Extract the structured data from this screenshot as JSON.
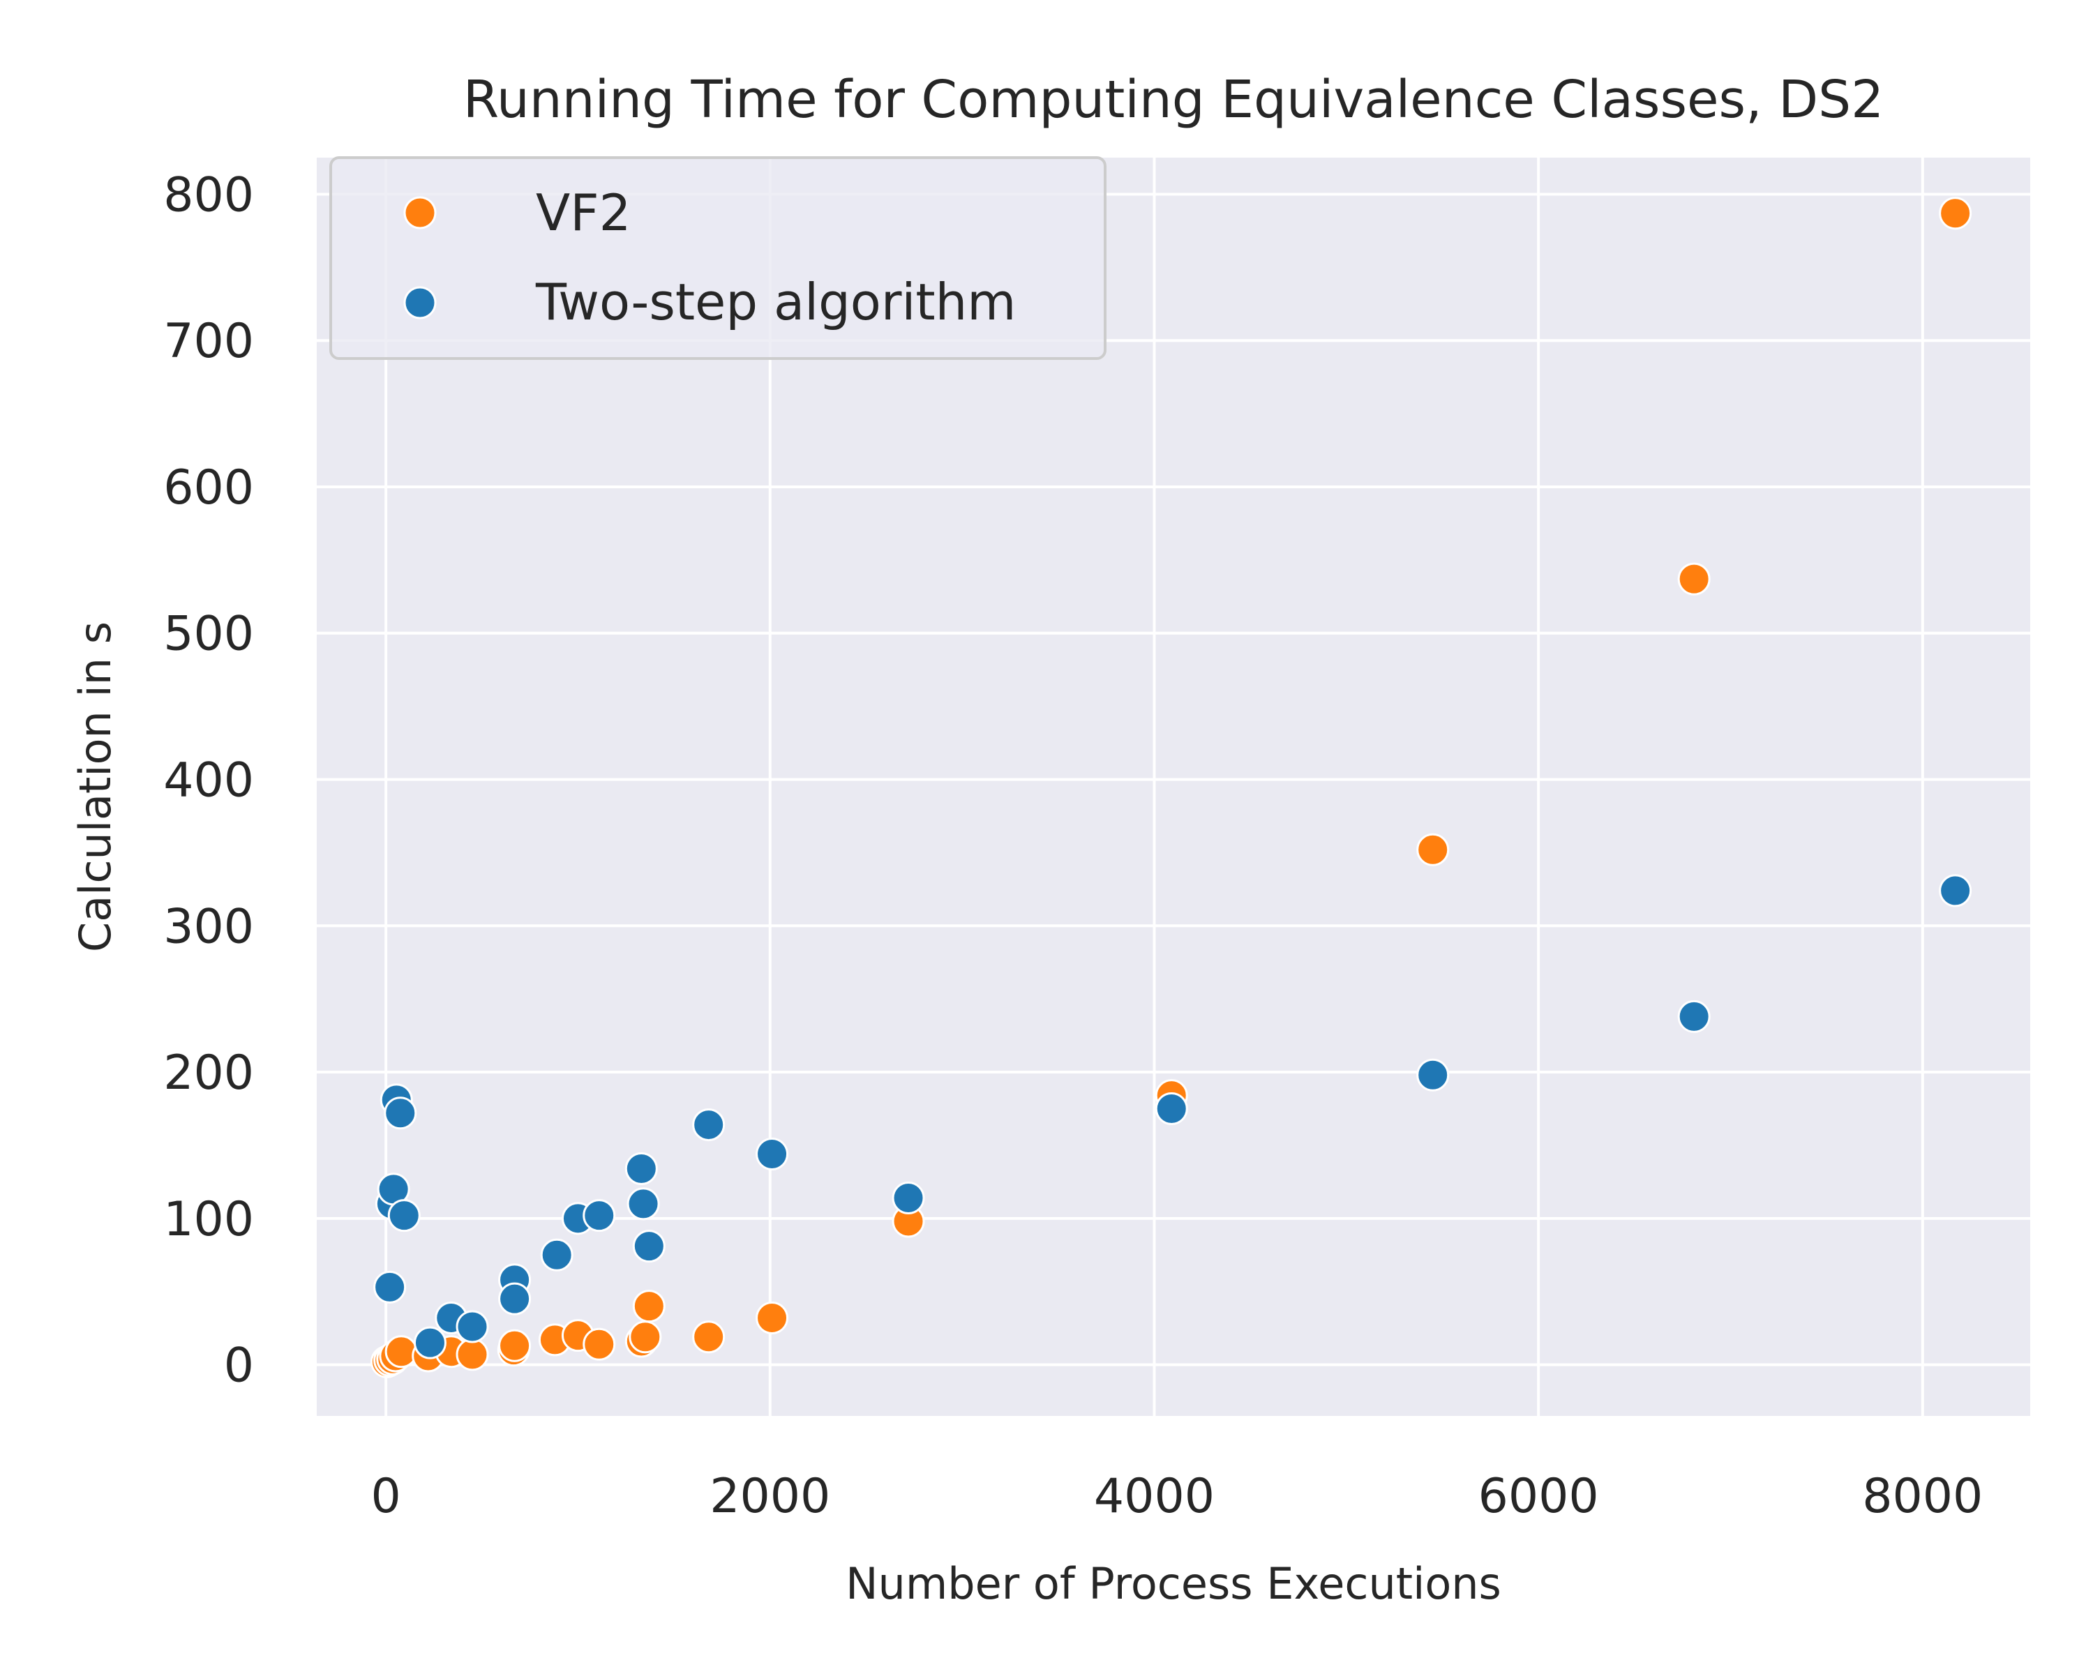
{
  "chart_data": {
    "type": "scatter",
    "title": "Running Time for Computing Equivalence Classes, DS2",
    "xlabel": "Number of Process Executions",
    "ylabel": "Calculation in s",
    "xlim": [
      -360,
      8560
    ],
    "ylim": [
      -35,
      825
    ],
    "xticks": [
      0,
      2000,
      4000,
      6000,
      8000
    ],
    "yticks": [
      0,
      100,
      200,
      300,
      400,
      500,
      600,
      700,
      800
    ],
    "grid": true,
    "legend": "top-left",
    "colors": {
      "background": "#eaeaf2",
      "grid": "#ffffff",
      "VF2": "#ff7f0e",
      "Two-step algorithm": "#1f77b4"
    },
    "series": [
      {
        "name": "VF2",
        "color": "#ff7f0e",
        "points": [
          [
            5,
            2
          ],
          [
            20,
            3
          ],
          [
            35,
            4
          ],
          [
            50,
            6
          ],
          [
            80,
            9
          ],
          [
            220,
            6
          ],
          [
            340,
            9
          ],
          [
            450,
            7
          ],
          [
            665,
            10
          ],
          [
            670,
            13
          ],
          [
            880,
            17
          ],
          [
            1000,
            20
          ],
          [
            1110,
            14
          ],
          [
            1330,
            16
          ],
          [
            1350,
            19
          ],
          [
            1370,
            40
          ],
          [
            1680,
            19
          ],
          [
            2010,
            32
          ],
          [
            2720,
            98
          ],
          [
            4090,
            184
          ],
          [
            5450,
            352
          ],
          [
            6810,
            537
          ],
          [
            8170,
            787
          ]
        ]
      },
      {
        "name": "Two-step algorithm",
        "color": "#1f77b4",
        "points": [
          [
            30,
            110
          ],
          [
            40,
            120
          ],
          [
            55,
            181
          ],
          [
            75,
            172
          ],
          [
            95,
            102
          ],
          [
            20,
            53
          ],
          [
            230,
            15
          ],
          [
            340,
            32
          ],
          [
            450,
            26
          ],
          [
            670,
            58
          ],
          [
            670,
            45
          ],
          [
            890,
            75
          ],
          [
            1000,
            100
          ],
          [
            1110,
            102
          ],
          [
            1330,
            134
          ],
          [
            1340,
            110
          ],
          [
            1370,
            81
          ],
          [
            1680,
            164
          ],
          [
            2010,
            144
          ],
          [
            2720,
            114
          ],
          [
            4090,
            175
          ],
          [
            5450,
            198
          ],
          [
            6810,
            238
          ],
          [
            8170,
            324
          ]
        ]
      }
    ]
  }
}
